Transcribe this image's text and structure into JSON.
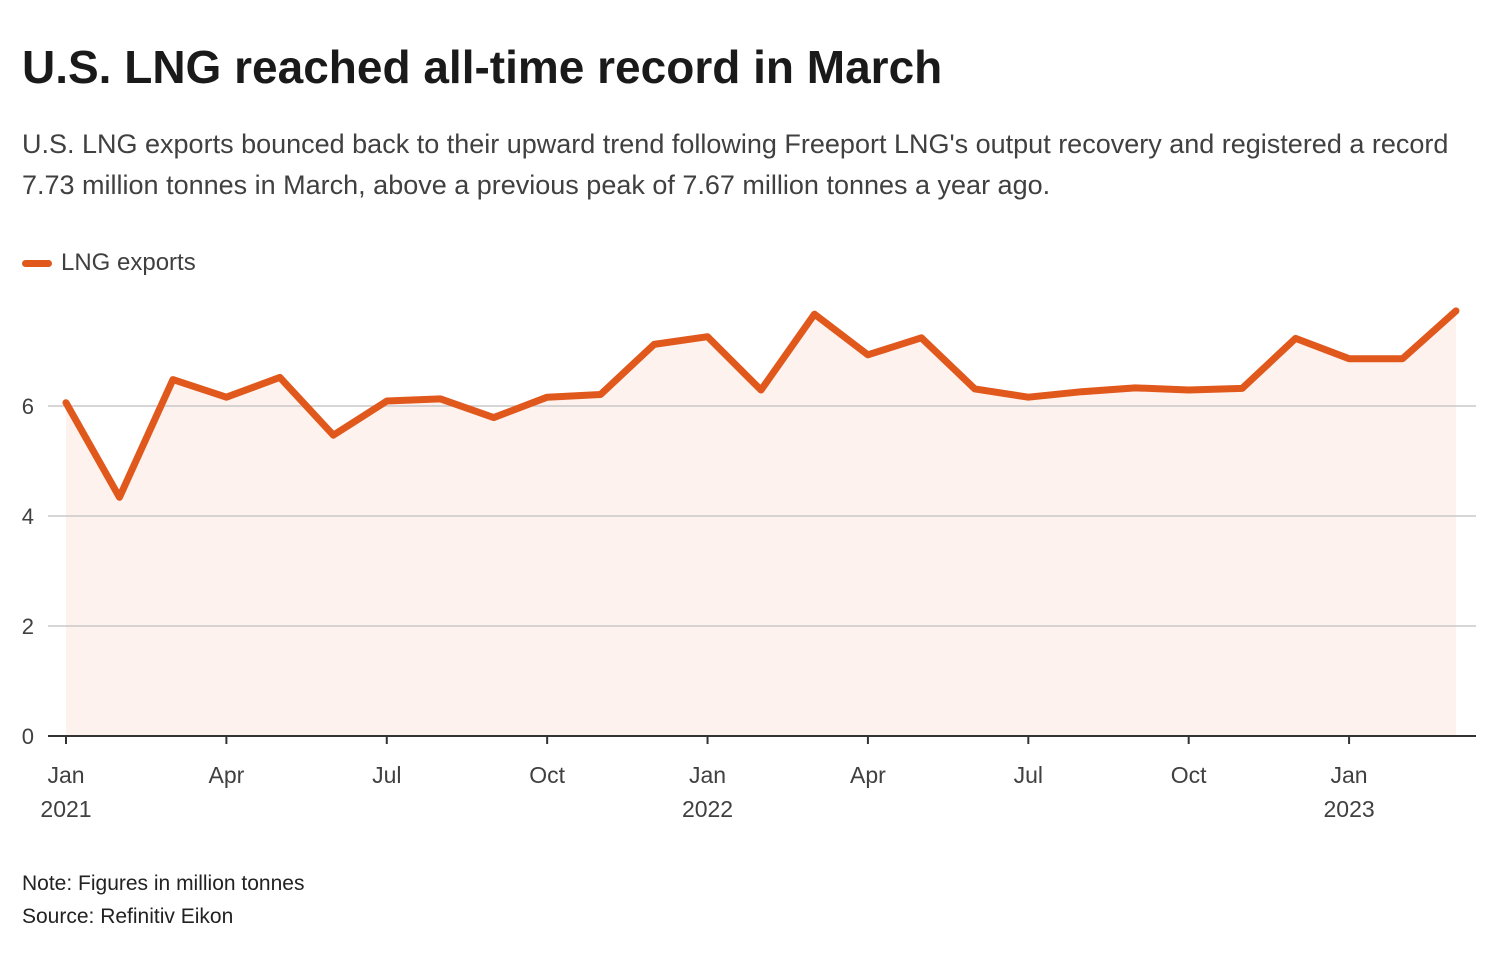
{
  "title": "U.S. LNG reached all-time record in March",
  "subtitle": "U.S. LNG exports bounced back to their upward trend following Freeport LNG's output recovery and registered a record 7.73 million tonnes in March, above a previous peak of 7.67 million tonnes a year ago.",
  "legend": {
    "label": "LNG exports"
  },
  "note": "Note: Figures in million tonnes",
  "source": "Source: Refinitiv Eikon",
  "colors": {
    "line": "#e1581d",
    "area": "#fdf2ed",
    "grid": "#c8c8c8",
    "axis": "#333333"
  },
  "chart_data": {
    "type": "area",
    "series": [
      {
        "name": "LNG exports",
        "x": [
          "2021-01",
          "2021-02",
          "2021-03",
          "2021-04",
          "2021-05",
          "2021-06",
          "2021-07",
          "2021-08",
          "2021-09",
          "2021-10",
          "2021-11",
          "2021-12",
          "2022-01",
          "2022-02",
          "2022-03",
          "2022-04",
          "2022-05",
          "2022-06",
          "2022-07",
          "2022-08",
          "2022-09",
          "2022-10",
          "2022-11",
          "2022-12",
          "2023-01",
          "2023-02",
          "2023-03"
        ],
        "values": [
          6.06,
          4.34,
          6.48,
          6.16,
          6.52,
          5.47,
          6.09,
          6.13,
          5.79,
          6.16,
          6.21,
          7.12,
          7.26,
          6.29,
          7.67,
          6.93,
          7.24,
          6.31,
          6.16,
          6.26,
          6.33,
          6.29,
          6.32,
          7.23,
          6.86,
          6.86,
          7.73
        ]
      }
    ],
    "ylim": [
      0,
      8
    ],
    "yticks": [
      0,
      2,
      4,
      6
    ],
    "xticks": [
      {
        "label": "Jan",
        "sub": "2021",
        "index": 0
      },
      {
        "label": "Apr",
        "sub": "",
        "index": 3
      },
      {
        "label": "Jul",
        "sub": "",
        "index": 6
      },
      {
        "label": "Oct",
        "sub": "",
        "index": 9
      },
      {
        "label": "Jan",
        "sub": "2022",
        "index": 12
      },
      {
        "label": "Apr",
        "sub": "",
        "index": 15
      },
      {
        "label": "Jul",
        "sub": "",
        "index": 18
      },
      {
        "label": "Oct",
        "sub": "",
        "index": 21
      },
      {
        "label": "Jan",
        "sub": "2023",
        "index": 24
      }
    ],
    "grid": true,
    "legend_position": "top-left"
  }
}
